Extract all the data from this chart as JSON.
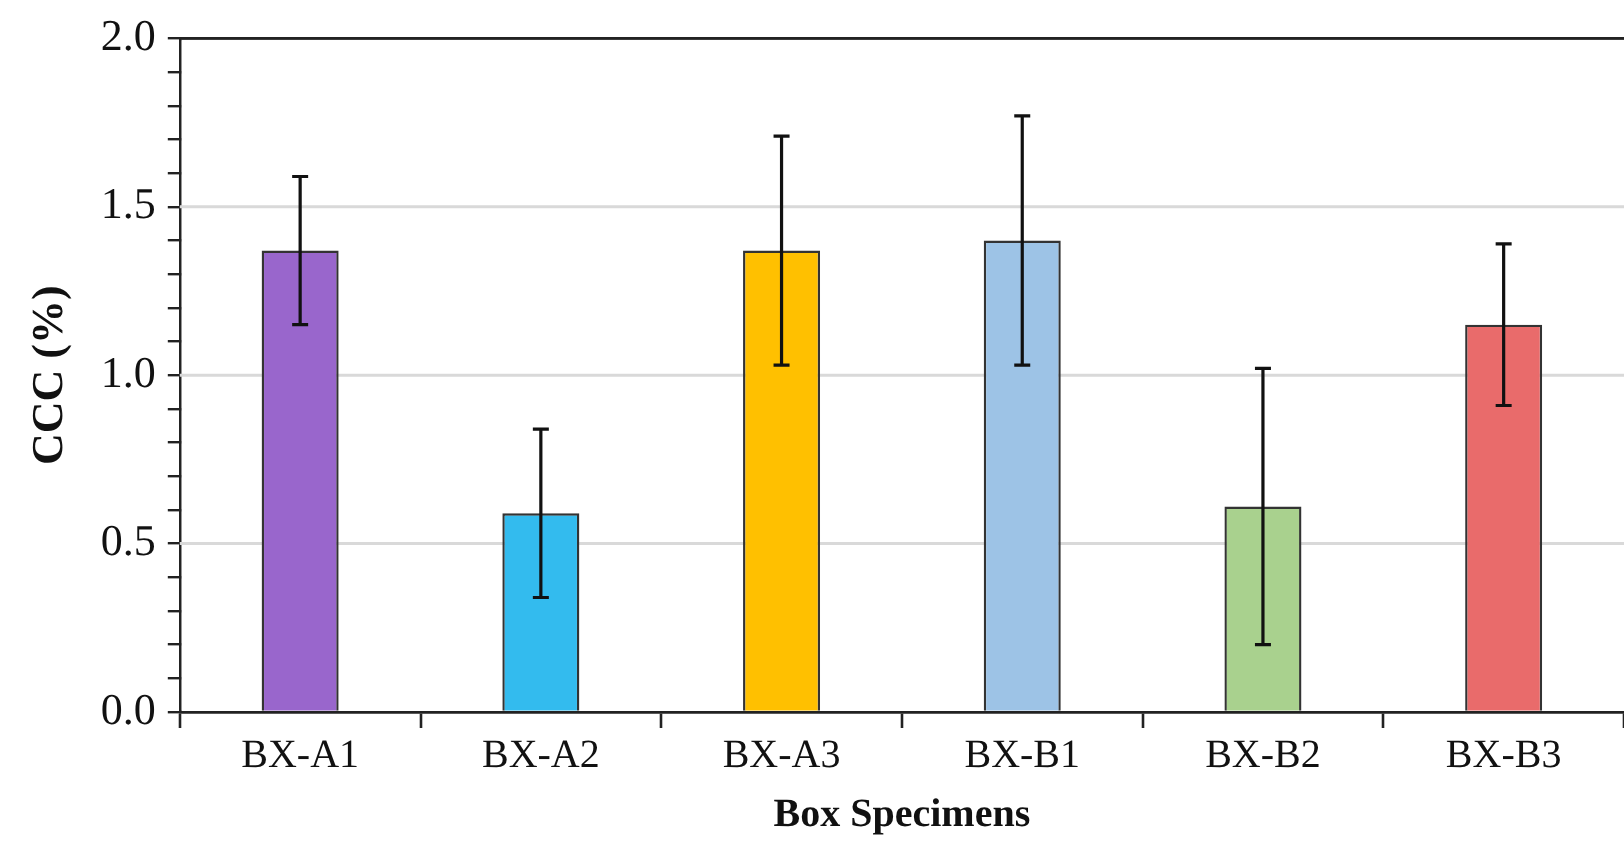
{
  "chart_data": {
    "type": "bar",
    "xlabel": "Box Specimens",
    "ylabel": "CCC (%)",
    "categories": [
      "BX-A1",
      "BX-A2",
      "BX-A3",
      "BX-B1",
      "BX-B2",
      "BX-B3"
    ],
    "values": [
      1.37,
      0.59,
      1.37,
      1.4,
      0.61,
      1.15
    ],
    "errors": [
      0.22,
      0.25,
      0.34,
      0.37,
      0.41,
      0.24
    ],
    "colors": [
      "#9966cc",
      "#33bbee",
      "#ffc000",
      "#9dc3e6",
      "#a9d18e",
      "#e96b6b"
    ],
    "ylim": [
      0,
      2
    ],
    "yticks": [
      {
        "value": 0,
        "label": "0.0"
      },
      {
        "value": 0.1,
        "label": null
      },
      {
        "value": 0.2,
        "label": null
      },
      {
        "value": 0.3,
        "label": null
      },
      {
        "value": 0.4,
        "label": null
      },
      {
        "value": 0.5,
        "label": "0.5"
      },
      {
        "value": 0.6,
        "label": null
      },
      {
        "value": 0.7,
        "label": null
      },
      {
        "value": 0.8,
        "label": null
      },
      {
        "value": 0.9,
        "label": null
      },
      {
        "value": 1,
        "label": "1.0"
      },
      {
        "value": 1.1,
        "label": null
      },
      {
        "value": 1.2,
        "label": null
      },
      {
        "value": 1.3,
        "label": null
      },
      {
        "value": 1.4,
        "label": null
      },
      {
        "value": 1.5,
        "label": "1.5"
      },
      {
        "value": 1.6,
        "label": null
      },
      {
        "value": 1.7,
        "label": null
      },
      {
        "value": 1.8,
        "label": null
      },
      {
        "value": 1.9,
        "label": null
      },
      {
        "value": 2,
        "label": "2.0"
      }
    ],
    "grid": "y",
    "legend": false
  }
}
